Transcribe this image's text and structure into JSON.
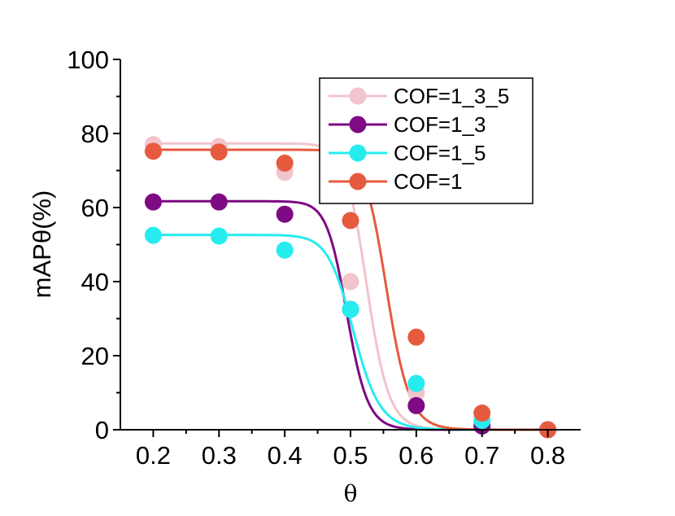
{
  "chart_data": {
    "type": "line",
    "title": "",
    "xlabel": "θ",
    "ylabel": "mAPθ(%)",
    "xlim": [
      0.15,
      0.85
    ],
    "ylim": [
      0,
      100
    ],
    "x": [
      0.2,
      0.3,
      0.4,
      0.5,
      0.6,
      0.7,
      0.8
    ],
    "x_ticks": [
      "0.2",
      "0.3",
      "0.4",
      "0.5",
      "0.6",
      "0.7",
      "0.8"
    ],
    "y_ticks": [
      "0",
      "20",
      "40",
      "60",
      "80",
      "100"
    ],
    "legend_position": "top-right",
    "series": [
      {
        "name": "COF=1_3_5",
        "color": "#f2c4cc",
        "values": [
          77,
          76.5,
          69.5,
          40,
          10,
          1.5,
          0
        ],
        "fit": {
          "top": 77.3,
          "bottom": 0,
          "x0": 0.525,
          "p": 7.2
        }
      },
      {
        "name": "COF=1_3",
        "color": "#7e0a84",
        "values": [
          61.5,
          61.5,
          58.2,
          32.5,
          6.5,
          1,
          0
        ],
        "fit": {
          "top": 61.7,
          "bottom": 0,
          "x0": 0.495,
          "p": 7.2
        }
      },
      {
        "name": "COF=1_5",
        "color": "#27ecee",
        "values": [
          52.5,
          52.3,
          48.5,
          32.5,
          12.5,
          2.5,
          0
        ],
        "fit": {
          "top": 52.6,
          "bottom": 0,
          "x0": 0.505,
          "p": 5.8
        }
      },
      {
        "name": "COF=1",
        "color": "#e65a3e",
        "values": [
          75.2,
          75,
          72,
          56.5,
          25,
          4.5,
          0
        ],
        "fit": {
          "top": 75.6,
          "bottom": 0,
          "x0": 0.555,
          "p": 7.3
        }
      }
    ]
  }
}
